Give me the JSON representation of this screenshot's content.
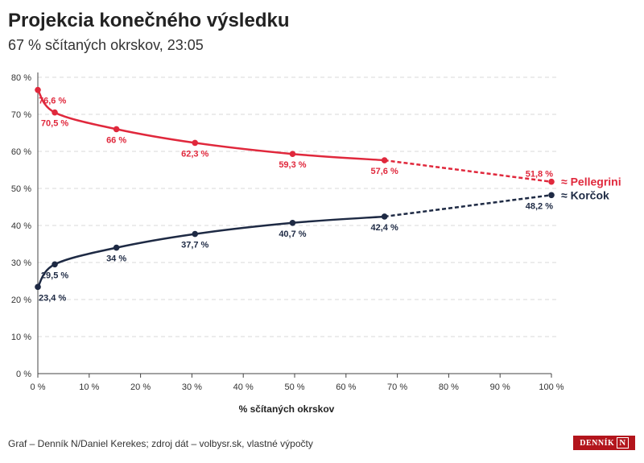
{
  "header": {
    "title": "Projekcia konečného výsledku",
    "subtitle": "67 % sčítaných okrskov, 23:05"
  },
  "footer": {
    "source": "Graf – Denník N/Daniel Kerekes; zdroj dát – volbysr.sk, vlastné výpočty",
    "logo_text": "DENNÍK",
    "logo_mark": "N"
  },
  "colors": {
    "pellegrini": "#e0283c",
    "korcok": "#1e2a44",
    "grid": "#d9d9d9",
    "axis": "#444444"
  },
  "chart_data": {
    "type": "line",
    "xlabel": "% sčítaných okrskov",
    "ylabel": "",
    "xlim": [
      0,
      100
    ],
    "ylim": [
      0,
      80
    ],
    "x_ticks": [
      0,
      10,
      20,
      30,
      40,
      50,
      60,
      70,
      80,
      90,
      100
    ],
    "y_ticks": [
      0,
      10,
      20,
      30,
      40,
      50,
      60,
      70,
      80
    ],
    "x_tick_labels": [
      "0 %",
      "10 %",
      "20 %",
      "30 %",
      "40 %",
      "50 %",
      "60 %",
      "70 %",
      "80 %",
      "90 %",
      "100 %"
    ],
    "y_tick_labels": [
      "0 %",
      "10 %",
      "20 %",
      "30 %",
      "40 %",
      "50 %",
      "60 %",
      "70 %",
      "80 %"
    ],
    "grid": "horizontal-dashed",
    "series": [
      {
        "name": "≈ Pellegrini",
        "color": "#e0283c",
        "points": [
          {
            "x": 0,
            "y": 76.6,
            "label": "76,6 %"
          },
          {
            "x": 3.3,
            "y": 70.5,
            "label": "70,5 %"
          },
          {
            "x": 15.3,
            "y": 66,
            "label": "66 %"
          },
          {
            "x": 30.6,
            "y": 62.3,
            "label": "62,3 %"
          },
          {
            "x": 49.6,
            "y": 59.3,
            "label": "59,3 %"
          },
          {
            "x": 67.5,
            "y": 57.6,
            "label": "57,6 %"
          }
        ],
        "projection": {
          "x": 100,
          "y": 51.8,
          "label": "51,8 %"
        }
      },
      {
        "name": "≈ Korčok",
        "color": "#1e2a44",
        "points": [
          {
            "x": 0,
            "y": 23.4,
            "label": "23,4 %"
          },
          {
            "x": 3.3,
            "y": 29.5,
            "label": "29,5 %"
          },
          {
            "x": 15.3,
            "y": 34,
            "label": "34 %"
          },
          {
            "x": 30.6,
            "y": 37.7,
            "label": "37,7 %"
          },
          {
            "x": 49.6,
            "y": 40.7,
            "label": "40,7 %"
          },
          {
            "x": 67.5,
            "y": 42.4,
            "label": "42,4 %"
          }
        ],
        "projection": {
          "x": 100,
          "y": 48.2,
          "label": "48,2 %"
        }
      }
    ]
  }
}
